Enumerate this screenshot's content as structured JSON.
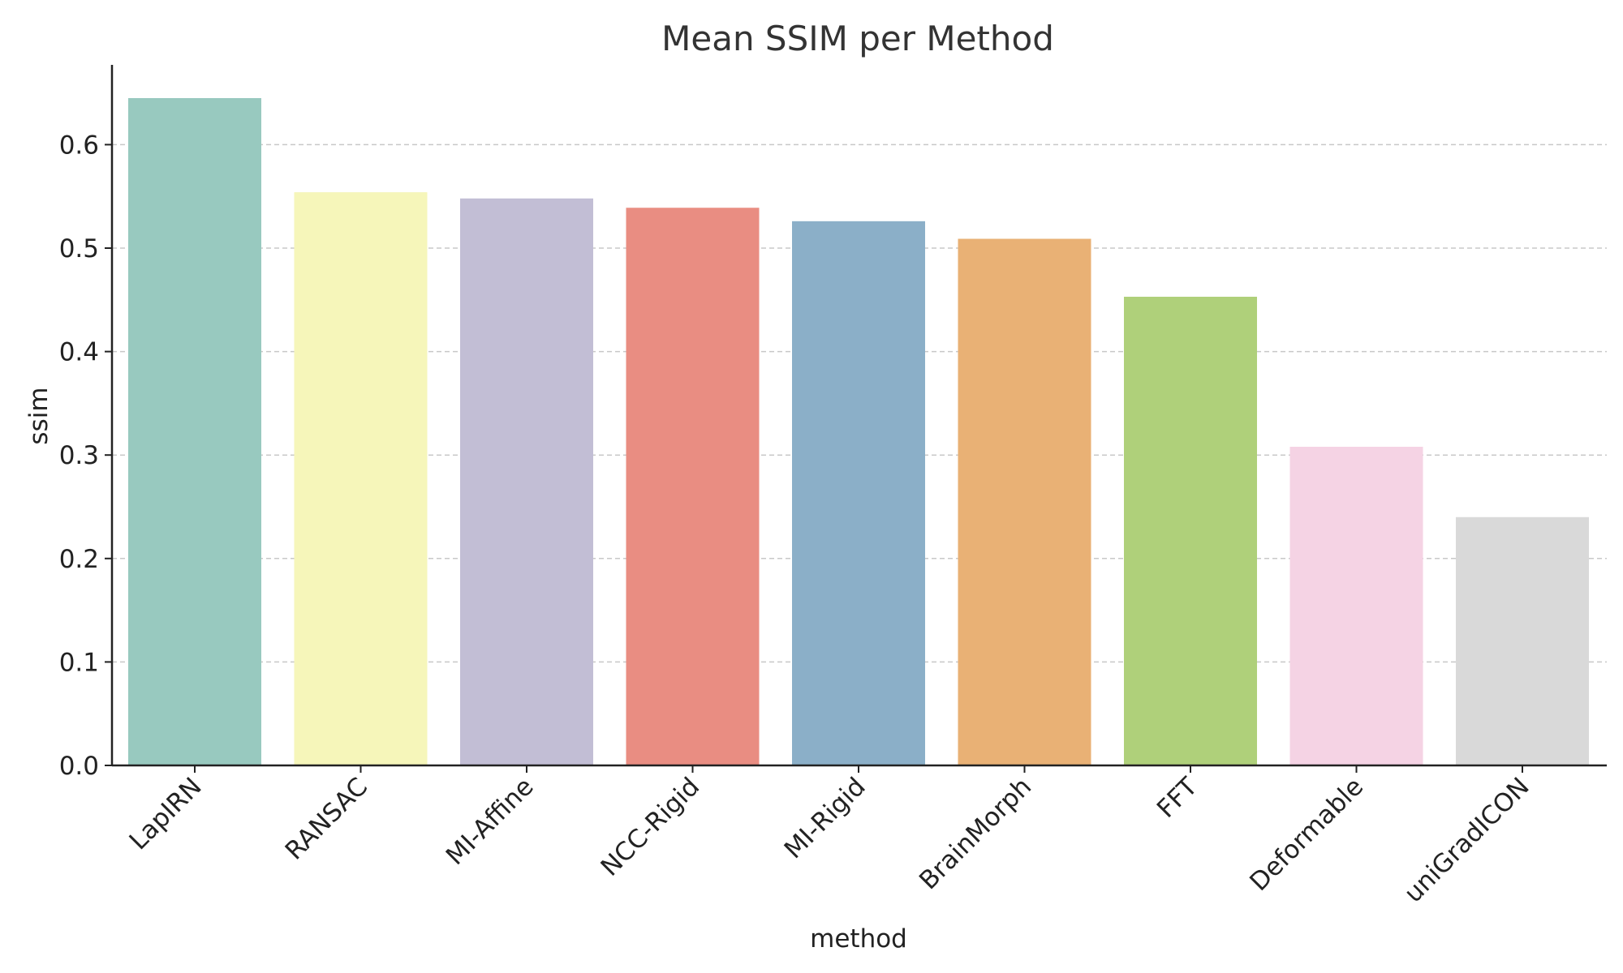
{
  "chart_data": {
    "type": "bar",
    "title": "Mean SSIM per Method",
    "xlabel": "method",
    "ylabel": "ssim",
    "categories": [
      "LapIRN",
      "RANSAC",
      "MI-Affine",
      "NCC-Rigid",
      "MI-Rigid",
      "BrainMorph",
      "FFT",
      "Deformable",
      "uniGradICON"
    ],
    "values": [
      0.645,
      0.554,
      0.548,
      0.539,
      0.526,
      0.509,
      0.453,
      0.308,
      0.24
    ],
    "colors": [
      "#98c9bf",
      "#f6f6ba",
      "#c2bed5",
      "#e98d82",
      "#8bafc8",
      "#e9b175",
      "#afd07a",
      "#f5d3e4",
      "#d9d9d9"
    ],
    "yticks": [
      "0.0",
      "0.1",
      "0.2",
      "0.3",
      "0.4",
      "0.5",
      "0.6"
    ],
    "ylim": [
      0,
      0.68
    ],
    "grid": true,
    "grid_axis": "y",
    "x_tick_rotation": 45
  }
}
